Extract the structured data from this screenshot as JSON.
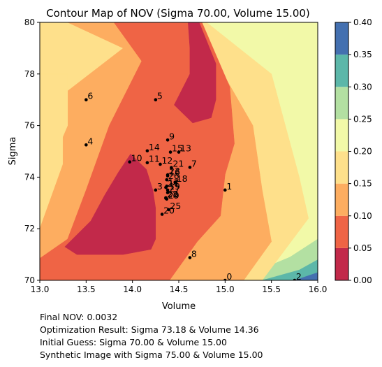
{
  "chart_data": {
    "type": "contour",
    "title": "Contour Map of NOV (Sigma 70.00, Volume 15.00)",
    "xlabel": "Volume",
    "ylabel": "Sigma",
    "xlim": [
      13.0,
      16.0
    ],
    "ylim": [
      70,
      80
    ],
    "xticks": [
      "13.0",
      "13.5",
      "14.0",
      "14.5",
      "15.0",
      "15.5",
      "16.0"
    ],
    "yticks": [
      "70",
      "72",
      "74",
      "76",
      "78",
      "80"
    ],
    "colorbar": {
      "levels": [
        0.0,
        0.05,
        0.1,
        0.15,
        0.2,
        0.25,
        0.3,
        0.35,
        0.4
      ],
      "ticks": [
        "0.00",
        "0.05",
        "0.10",
        "0.15",
        "0.20",
        "0.25",
        "0.30",
        "0.35",
        "0.40"
      ],
      "colors": [
        "#c2294a",
        "#ef6445",
        "#fdad60",
        "#fee08b",
        "#f2f9a8",
        "#b3e0a2",
        "#5cb7a9",
        "#4470b0"
      ]
    },
    "points": [
      {
        "label": "0",
        "volume": 15.0,
        "sigma": 70.0
      },
      {
        "label": "1",
        "volume": 15.0,
        "sigma": 73.5
      },
      {
        "label": "2",
        "volume": 15.75,
        "sigma": 70.0
      },
      {
        "label": "3",
        "volume": 14.25,
        "sigma": 73.5
      },
      {
        "label": "4",
        "volume": 13.5,
        "sigma": 75.25
      },
      {
        "label": "5",
        "volume": 14.25,
        "sigma": 77.0
      },
      {
        "label": "6",
        "volume": 13.5,
        "sigma": 77.0
      },
      {
        "label": "7",
        "volume": 14.62,
        "sigma": 74.38
      },
      {
        "label": "8",
        "volume": 14.62,
        "sigma": 70.88
      },
      {
        "label": "9",
        "volume": 14.38,
        "sigma": 75.44
      },
      {
        "label": "10",
        "volume": 13.97,
        "sigma": 74.59
      },
      {
        "label": "11",
        "volume": 14.16,
        "sigma": 74.56
      },
      {
        "label": "12",
        "volume": 14.3,
        "sigma": 74.5
      },
      {
        "label": "13",
        "volume": 14.5,
        "sigma": 74.97
      },
      {
        "label": "14",
        "volume": 14.16,
        "sigma": 75.02
      },
      {
        "label": "15",
        "volume": 14.41,
        "sigma": 74.97
      },
      {
        "label": "16",
        "volume": 14.38,
        "sigma": 74.05
      },
      {
        "label": "17",
        "volume": 14.37,
        "sigma": 73.65
      },
      {
        "label": "18",
        "volume": 14.46,
        "sigma": 73.8
      },
      {
        "label": "19",
        "volume": 14.38,
        "sigma": 73.5
      },
      {
        "label": "20",
        "volume": 14.32,
        "sigma": 72.56
      },
      {
        "label": "21",
        "volume": 14.42,
        "sigma": 74.37
      },
      {
        "label": "22",
        "volume": 14.36,
        "sigma": 73.18
      },
      {
        "label": "23",
        "volume": 14.38,
        "sigma": 74.09
      },
      {
        "label": "24",
        "volume": 14.36,
        "sigma": 73.6
      },
      {
        "label": "25",
        "volume": 14.39,
        "sigma": 72.74
      },
      {
        "label": "26",
        "volume": 14.37,
        "sigma": 73.9
      },
      {
        "label": "27",
        "volume": 14.38,
        "sigma": 73.4
      },
      {
        "label": "28",
        "volume": 14.36,
        "sigma": 73.2
      },
      {
        "label": "29",
        "volume": 14.37,
        "sigma": 73.15
      }
    ],
    "annotations": [
      "Final NOV: 0.0032",
      "Optimization Result: Sigma 73.18 & Volume 14.36",
      "Initial Guess: Sigma 70.00 & Volume 15.00",
      "Synthetic Image with Sigma 75.00 & Volume 15.00"
    ]
  }
}
